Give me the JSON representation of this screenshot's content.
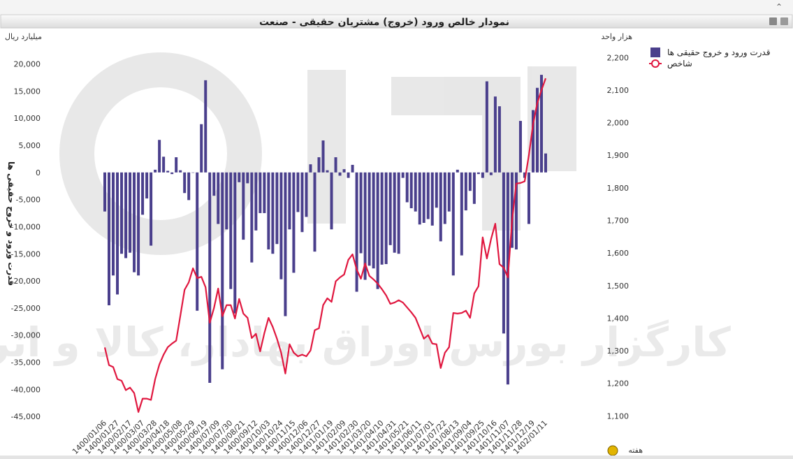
{
  "chart_data": {
    "type": "combo",
    "title": "نمودار خالص ورود (خروج) مشتریان حقیقی - صنعت",
    "y_unit": "میلیارد ریال",
    "y2_unit": "هزار واحد",
    "y_label": "قدرت ورود و خروج حقیقی ها",
    "x_label": "هفته",
    "watermark": "کارگزار بورس اوراق بهادار، کالا و انرژی",
    "categories": [
      "1400/01/06",
      null,
      null,
      "1400/01/27",
      null,
      null,
      "1400/02/17",
      null,
      null,
      "1400/03/07",
      null,
      null,
      "1400/03/28",
      null,
      null,
      "1400/04/18",
      null,
      null,
      "1400/05/08",
      null,
      null,
      "1400/05/29",
      null,
      null,
      "1400/06/19",
      null,
      null,
      "1400/07/09",
      null,
      null,
      "1400/07/30",
      null,
      null,
      "1400/08/21",
      null,
      null,
      "1400/09/12",
      null,
      null,
      "1400/10/03",
      null,
      null,
      "1400/10/24",
      null,
      null,
      "1400/11/15",
      null,
      null,
      "1400/12/06",
      null,
      null,
      "1400/12/27",
      null,
      null,
      "1401/01/19",
      null,
      null,
      "1401/02/09",
      null,
      null,
      "1401/02/30",
      null,
      null,
      "1401/03/20",
      null,
      null,
      "1401/04/10",
      null,
      null,
      "1401/04/31",
      null,
      null,
      "1401/05/21",
      null,
      null,
      "1401/06/11",
      null,
      null,
      "1401/07/01",
      null,
      null,
      "1401/07/22",
      null,
      null,
      "1401/08/13",
      null,
      null,
      "1401/09/04",
      null,
      null,
      "1401/09/25",
      null,
      null,
      "1401/10/16",
      null,
      null,
      "1401/11/07",
      null,
      null,
      "1401/11/28",
      null,
      null,
      "1401/12/19",
      null,
      null,
      "1402/01/11"
    ],
    "series": [
      {
        "name": "قدرت ورود و خروج حقیقی ها",
        "type": "bar",
        "axis": "y",
        "color": "#4a3f8c",
        "values": [
          -7200,
          -24500,
          -19000,
          -22500,
          -15000,
          -15800,
          -14800,
          -18400,
          -19000,
          -7800,
          -4800,
          -13500,
          500,
          6000,
          2900,
          300,
          -300,
          2800,
          400,
          -3800,
          -5100,
          0,
          -25500,
          8900,
          17000,
          -38800,
          -4300,
          -9500,
          -36300,
          -10500,
          -21500,
          -26000,
          -1800,
          -12400,
          -2000,
          -16600,
          -10700,
          -7500,
          -7500,
          -14200,
          -15000,
          -13200,
          -19700,
          -26500,
          -10500,
          -18500,
          -7300,
          -11000,
          -8200,
          1500,
          -14600,
          2800,
          5900,
          400,
          -10500,
          2800,
          -600,
          600,
          -1000,
          1400,
          -22000,
          -14900,
          -19800,
          -17200,
          -17700,
          -21500,
          -17000,
          -16900,
          -13400,
          -14800,
          -15000,
          -1000,
          -5500,
          -6600,
          -7200,
          -9600,
          -9300,
          -8600,
          -9800,
          -6500,
          -12700,
          -9500,
          -7200,
          -19000,
          500,
          -15300,
          -7000,
          -3400,
          -5800,
          -300,
          -1000,
          16800,
          -500,
          14000,
          12200,
          -29700,
          -39100,
          -13900,
          -14200,
          9500,
          -1000,
          -9500,
          11500,
          15600,
          18000,
          3500
        ]
      },
      {
        "name": "شاخص",
        "type": "line",
        "axis": "y2",
        "color": "#e0173f",
        "values": [
          1310,
          1256,
          1250,
          1213,
          1208,
          1179,
          1187,
          1170,
          1112,
          1153,
          1153,
          1149,
          1213,
          1258,
          1288,
          1311,
          1322,
          1331,
          1408,
          1487,
          1510,
          1553,
          1523,
          1527,
          1495,
          1386,
          1431,
          1491,
          1406,
          1440,
          1440,
          1399,
          1459,
          1414,
          1401,
          1339,
          1352,
          1298,
          1354,
          1401,
          1373,
          1337,
          1294,
          1230,
          1320,
          1294,
          1283,
          1288,
          1283,
          1301,
          1363,
          1369,
          1440,
          1461,
          1450,
          1513,
          1525,
          1534,
          1579,
          1596,
          1549,
          1521,
          1568,
          1530,
          1519,
          1506,
          1489,
          1470,
          1444,
          1448,
          1455,
          1448,
          1433,
          1418,
          1401,
          1369,
          1337,
          1348,
          1322,
          1320,
          1247,
          1294,
          1311,
          1416,
          1414,
          1416,
          1423,
          1401,
          1476,
          1498,
          1648,
          1583,
          1643,
          1690,
          1566,
          1555,
          1525,
          1700,
          1813,
          1815,
          1820,
          1900,
          1995,
          2060,
          2100,
          2136
        ]
      }
    ],
    "ylim": [
      -45500,
      26000
    ],
    "yticks": [
      {
        "value": -45000,
        "label": "-45,000"
      },
      {
        "value": -40000,
        "label": "-40,000"
      },
      {
        "value": -35000,
        "label": "-35,000"
      },
      {
        "value": -30000,
        "label": "-30,000"
      },
      {
        "value": -25000,
        "label": "-25,000"
      },
      {
        "value": -20000,
        "label": "-20,000"
      },
      {
        "value": -15000,
        "label": "-15,000"
      },
      {
        "value": -10000,
        "label": "-10,000"
      },
      {
        "value": -5000,
        "label": "-5,000"
      },
      0,
      {
        "value": 5000,
        "label": "5,000"
      },
      {
        "value": 10000,
        "label": "10,000"
      },
      {
        "value": 15000,
        "label": "15,000"
      },
      {
        "value": 20000,
        "label": "20,000"
      }
    ],
    "y2lim": [
      1090,
      2280
    ],
    "y2ticks": [
      {
        "value": 1100,
        "label": "1,100"
      },
      {
        "value": 1200,
        "label": "1,200"
      },
      {
        "value": 1300,
        "label": "1,300"
      },
      {
        "value": 1400,
        "label": "1,400"
      },
      {
        "value": 1500,
        "label": "1,500"
      },
      {
        "value": 1600,
        "label": "1,600"
      },
      {
        "value": 1700,
        "label": "1,700"
      },
      {
        "value": 1800,
        "label": "1,800"
      },
      {
        "value": 1900,
        "label": "1,900"
      },
      {
        "value": 2000,
        "label": "2,000"
      },
      {
        "value": 2100,
        "label": "2,100"
      },
      {
        "value": 2200,
        "label": "2,200"
      }
    ],
    "grid": false,
    "legend": "right"
  }
}
